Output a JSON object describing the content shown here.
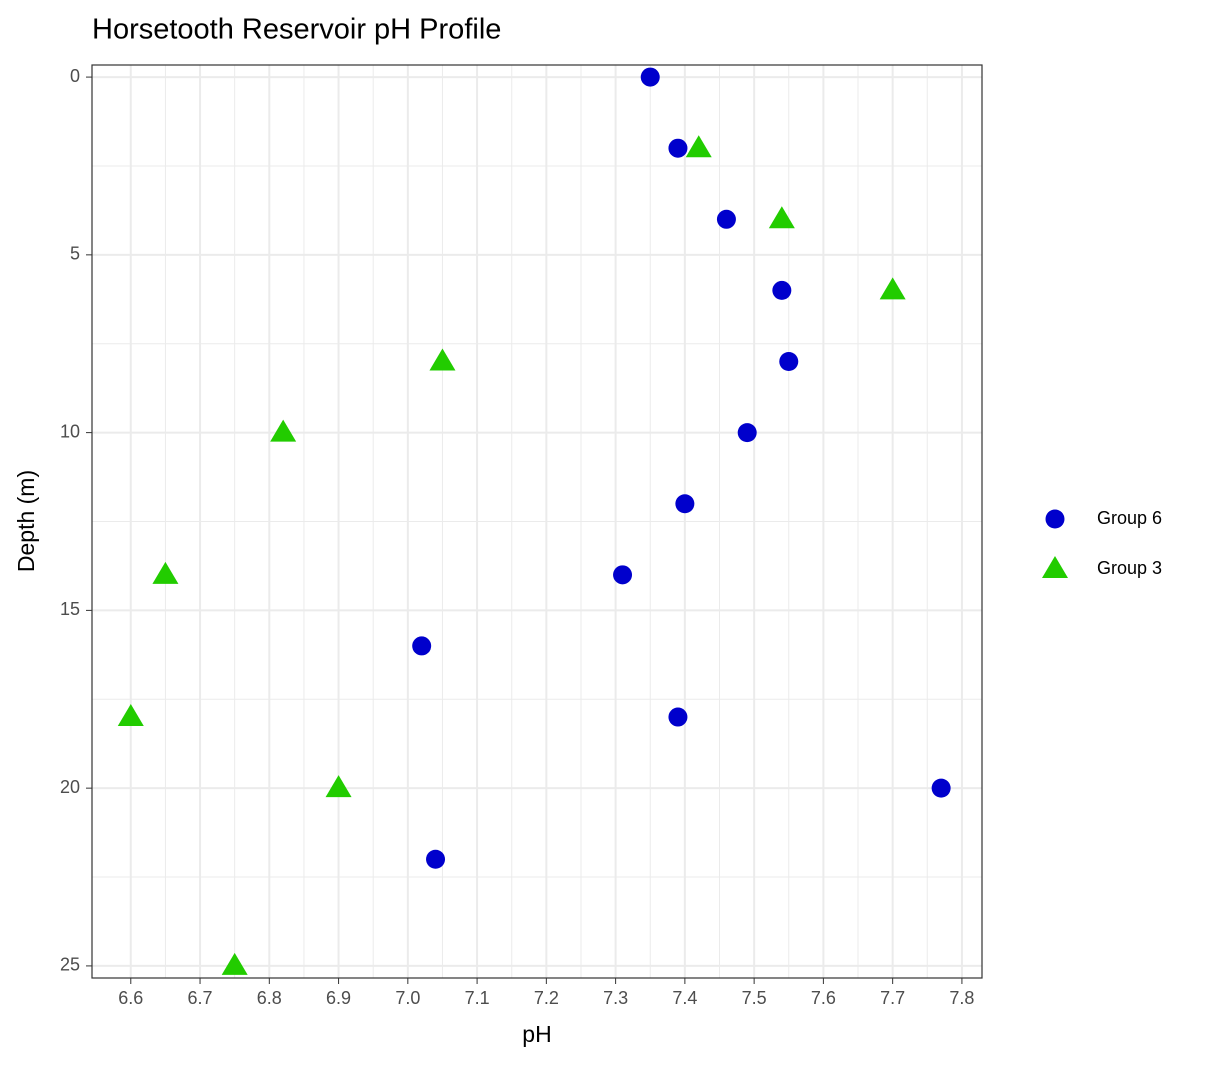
{
  "chart_data": {
    "type": "scatter",
    "title": "Horsetooth Reservoir pH Profile",
    "x_label": "pH",
    "y_label": "Depth (m)",
    "xlim": [
      6.544,
      7.829
    ],
    "ylim": [
      -0.34,
      25.34
    ],
    "y_inverted": true,
    "grid": true,
    "xticks": [
      6.6,
      6.7,
      6.8,
      6.9,
      {
        "value": 7,
        "label": "7.0"
      },
      7.1,
      7.2,
      7.3,
      7.4,
      7.5,
      7.6,
      7.7,
      7.8
    ],
    "x_minor_ticks": [
      6.65,
      6.75,
      6.85,
      6.95,
      7.05,
      7.15,
      7.25,
      7.35,
      7.45,
      7.55,
      7.65,
      7.75
    ],
    "yticks": [
      0,
      5,
      10,
      15,
      20,
      25
    ],
    "y_minor_ticks": [
      2.5,
      7.5,
      12.5,
      17.5,
      22.5
    ],
    "series": [
      {
        "name": "Group 6",
        "color": "#0000cc",
        "shape": "circle",
        "x": [
          7.35,
          7.39,
          7.46,
          7.54,
          7.55,
          7.49,
          7.4,
          7.31,
          7.02,
          7.39,
          7.77,
          7.04
        ],
        "values": [
          0,
          2,
          4,
          6,
          8,
          10,
          12,
          14,
          16,
          18,
          20,
          22
        ]
      },
      {
        "name": "Group 3",
        "color": "#22cc00",
        "shape": "triangle",
        "x": [
          7.42,
          7.54,
          7.7,
          7.05,
          6.82,
          6.65,
          6.6,
          6.9,
          6.75
        ],
        "values": [
          2,
          4,
          6,
          8,
          10,
          14,
          18,
          20,
          25
        ]
      }
    ]
  }
}
